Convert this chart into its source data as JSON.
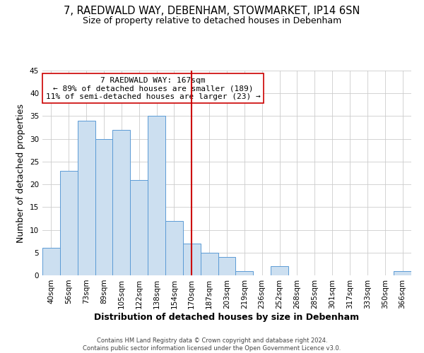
{
  "title": "7, RAEDWALD WAY, DEBENHAM, STOWMARKET, IP14 6SN",
  "subtitle": "Size of property relative to detached houses in Debenham",
  "xlabel": "Distribution of detached houses by size in Debenham",
  "ylabel": "Number of detached properties",
  "bar_labels": [
    "40sqm",
    "56sqm",
    "73sqm",
    "89sqm",
    "105sqm",
    "122sqm",
    "138sqm",
    "154sqm",
    "170sqm",
    "187sqm",
    "203sqm",
    "219sqm",
    "236sqm",
    "252sqm",
    "268sqm",
    "285sqm",
    "301sqm",
    "317sqm",
    "333sqm",
    "350sqm",
    "366sqm"
  ],
  "bar_values": [
    6,
    23,
    34,
    30,
    32,
    21,
    35,
    12,
    7,
    5,
    4,
    1,
    0,
    2,
    0,
    0,
    0,
    0,
    0,
    0,
    1
  ],
  "bar_width": 1.0,
  "bar_color": "#ccdff0",
  "bar_edge_color": "#5b9bd5",
  "ylim": [
    0,
    45
  ],
  "yticks": [
    0,
    5,
    10,
    15,
    20,
    25,
    30,
    35,
    40,
    45
  ],
  "vline_x": 8.0,
  "vline_color": "#cc0000",
  "annotation_title": "7 RAEDWALD WAY: 167sqm",
  "annotation_line1": "← 89% of detached houses are smaller (189)",
  "annotation_line2": "11% of semi-detached houses are larger (23) →",
  "footer1": "Contains HM Land Registry data © Crown copyright and database right 2024.",
  "footer2": "Contains public sector information licensed under the Open Government Licence v3.0.",
  "background_color": "#ffffff",
  "grid_color": "#cccccc",
  "title_fontsize": 10.5,
  "subtitle_fontsize": 9,
  "axis_label_fontsize": 9,
  "tick_fontsize": 7.5,
  "annotation_fontsize": 8,
  "footer_fontsize": 6
}
